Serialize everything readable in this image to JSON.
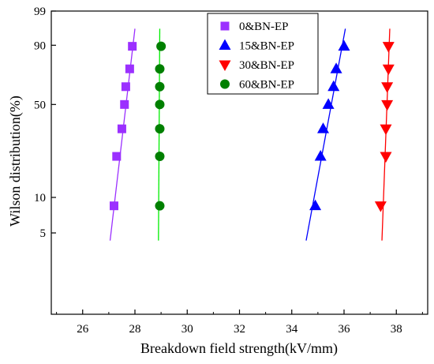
{
  "chart_data": {
    "type": "scatter",
    "xlabel": "Breakdown field strength(kV/mm)",
    "ylabel": "Wilson distribution(%)",
    "xlim": [
      24.8,
      39.2
    ],
    "x_ticks": [
      26,
      28,
      30,
      32,
      34,
      36,
      38
    ],
    "y_scale": "weibull probability",
    "y_ticks": [
      5,
      10,
      50,
      90,
      99
    ],
    "legend_position": "top-center",
    "grid": false,
    "series": [
      {
        "name": "0&BN-EP",
        "marker": "square",
        "color": "#9b30ff",
        "x": [
          27.2,
          27.3,
          27.5,
          27.6,
          27.65,
          27.8,
          27.9
        ],
        "y": [
          8.5,
          21.5,
          34.5,
          50,
          63,
          76,
          89.5
        ],
        "fit": {
          "x": [
            27.05,
            28.0
          ],
          "y": [
            4.3,
            96
          ]
        }
      },
      {
        "name": "15&BN-EP",
        "marker": "triangle-up",
        "color": "#0000ff",
        "x": [
          34.9,
          35.1,
          35.2,
          35.4,
          35.6,
          35.7,
          36.0
        ],
        "y": [
          8.5,
          21.5,
          34.5,
          50,
          63,
          76,
          89.5
        ],
        "fit": {
          "x": [
            34.55,
            36.05
          ],
          "y": [
            4.3,
            96
          ]
        }
      },
      {
        "name": "30&BN-EP",
        "marker": "triangle-down",
        "color": "#ff0000",
        "x": [
          37.4,
          37.6,
          37.6,
          37.65,
          37.65,
          37.7,
          37.7
        ],
        "y": [
          8.5,
          21.5,
          34.5,
          50,
          63,
          76,
          89.5
        ],
        "fit": {
          "x": [
            37.45,
            37.75
          ],
          "y": [
            4.3,
            96
          ]
        }
      },
      {
        "name": "60&BN-EP",
        "marker": "circle",
        "color": "#008000",
        "x": [
          28.95,
          28.95,
          28.95,
          28.95,
          28.95,
          28.95,
          29.0
        ],
        "y": [
          8.5,
          21.5,
          34.5,
          50,
          63,
          76,
          89.5
        ],
        "fit": {
          "x": [
            28.9,
            28.95
          ],
          "y": [
            4.3,
            96
          ]
        }
      }
    ]
  }
}
